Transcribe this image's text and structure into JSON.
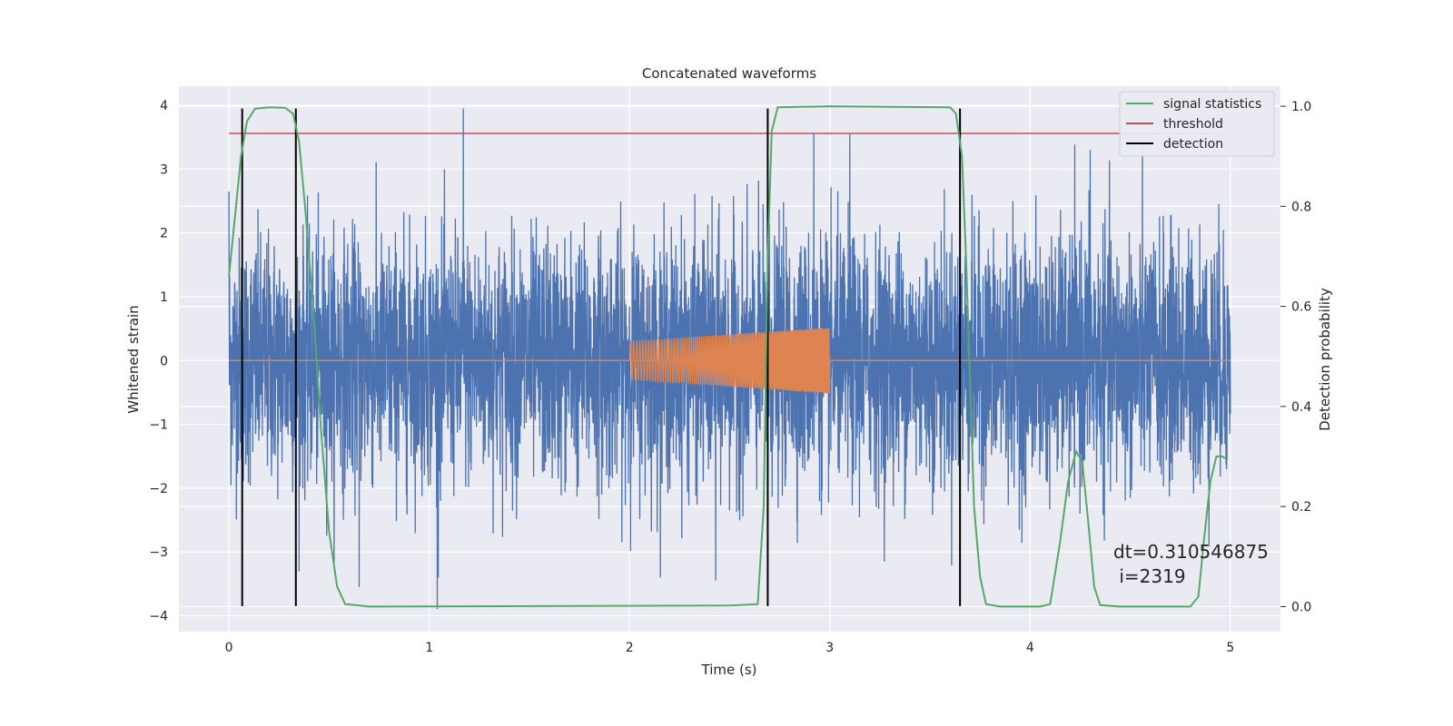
{
  "chart_data": {
    "type": "line",
    "title": "Concatenated waveforms",
    "xlabel": "Time (s)",
    "ylabel": "Whitened strain",
    "y2label": "Detection probability",
    "xlim": [
      -0.25,
      5.25
    ],
    "ylim": [
      -4.25,
      4.3
    ],
    "y2lim": [
      -0.05,
      1.04
    ],
    "xticks": [
      0,
      1,
      2,
      3,
      4,
      5
    ],
    "yticks": [
      -4,
      -3,
      -2,
      -1,
      0,
      1,
      2,
      3,
      4
    ],
    "y2ticks": [
      0.0,
      0.2,
      0.4,
      0.6,
      0.8,
      1.0
    ],
    "xtick_labels": [
      "0",
      "1",
      "2",
      "3",
      "4",
      "5"
    ],
    "ytick_labels": [
      "−4",
      "−3",
      "−2",
      "−1",
      "0",
      "1",
      "2",
      "3",
      "4"
    ],
    "y2tick_labels": [
      "0.0",
      "0.2",
      "0.4",
      "0.6",
      "0.8",
      "1.0"
    ],
    "grid": true,
    "legend_position": "top-right",
    "legend": [
      "signal statistics",
      "threshold",
      "detection"
    ],
    "annotation": {
      "line1": "dt=0.310546875",
      "line2": " i=2319"
    },
    "colors": {
      "background": "#eaeaf2",
      "grid": "#ffffff",
      "strain": "#4c72b0",
      "injection": "#dd8452",
      "signal_statistics": "#55a868",
      "threshold": "#c44e52",
      "detection": "#000000"
    },
    "series": [
      {
        "name": "Whitened strain",
        "axis": "left",
        "x_range": [
          0,
          5
        ],
        "typical_range": [
          -1.0,
          1.0
        ],
        "peaks": [
          {
            "x": 0.0,
            "y": 2.65
          },
          {
            "x": 1.17,
            "y": 3.95
          },
          {
            "x": 1.04,
            "y": -3.9
          },
          {
            "x": 0.65,
            "y": -3.55
          },
          {
            "x": 2.92,
            "y": 3.55
          },
          {
            "x": 3.1,
            "y": 3.55
          },
          {
            "x": 4.3,
            "y": 3.3
          },
          {
            "x": 2.43,
            "y": -3.45
          }
        ]
      },
      {
        "name": "Injection",
        "axis": "left",
        "x_range": [
          2.0,
          3.0
        ],
        "amplitude_start": 0.3,
        "amplitude_end": 0.52
      },
      {
        "name": "signal statistics",
        "axis": "right",
        "points": [
          [
            0.0,
            0.66
          ],
          [
            0.03,
            0.78
          ],
          [
            0.06,
            0.9
          ],
          [
            0.09,
            0.97
          ],
          [
            0.13,
            0.995
          ],
          [
            0.2,
            0.998
          ],
          [
            0.28,
            0.997
          ],
          [
            0.32,
            0.985
          ],
          [
            0.35,
            0.93
          ],
          [
            0.38,
            0.8
          ],
          [
            0.42,
            0.6
          ],
          [
            0.46,
            0.35
          ],
          [
            0.5,
            0.15
          ],
          [
            0.54,
            0.04
          ],
          [
            0.58,
            0.005
          ],
          [
            0.7,
            0.0
          ],
          [
            2.5,
            0.002
          ],
          [
            2.64,
            0.005
          ],
          [
            2.67,
            0.2
          ],
          [
            2.69,
            0.7
          ],
          [
            2.71,
            0.95
          ],
          [
            2.74,
            0.998
          ],
          [
            3.0,
            1.0
          ],
          [
            3.6,
            0.998
          ],
          [
            3.63,
            0.985
          ],
          [
            3.66,
            0.9
          ],
          [
            3.68,
            0.7
          ],
          [
            3.7,
            0.45
          ],
          [
            3.72,
            0.2
          ],
          [
            3.75,
            0.06
          ],
          [
            3.78,
            0.005
          ],
          [
            3.85,
            0.0
          ],
          [
            4.05,
            0.0
          ],
          [
            4.1,
            0.005
          ],
          [
            4.15,
            0.13
          ],
          [
            4.19,
            0.25
          ],
          [
            4.23,
            0.31
          ],
          [
            4.26,
            0.29
          ],
          [
            4.29,
            0.17
          ],
          [
            4.32,
            0.04
          ],
          [
            4.35,
            0.003
          ],
          [
            4.45,
            0.0
          ],
          [
            4.8,
            0.0
          ],
          [
            4.84,
            0.02
          ],
          [
            4.87,
            0.14
          ],
          [
            4.9,
            0.25
          ],
          [
            4.93,
            0.3
          ],
          [
            4.96,
            0.3
          ],
          [
            4.98,
            0.295
          ]
        ]
      },
      {
        "name": "threshold",
        "axis": "left",
        "x": [
          0,
          4.95
        ],
        "y": 3.56
      },
      {
        "name": "detection",
        "axis": "left",
        "x": [
          0.066,
          0.334,
          2.69,
          3.65
        ],
        "y_range": [
          -3.85,
          3.95
        ]
      }
    ]
  }
}
